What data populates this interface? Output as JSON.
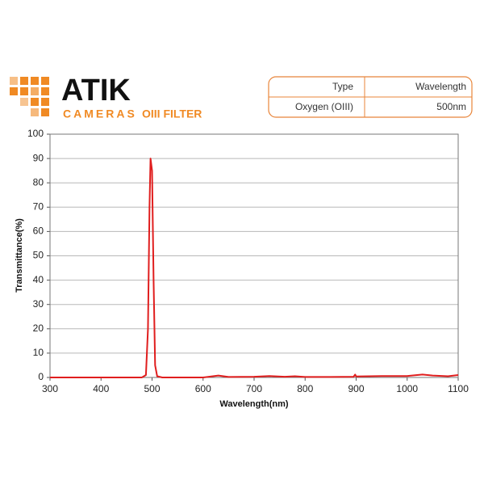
{
  "header": {
    "brand": "ATIK",
    "subbrand": "CAMERAS",
    "product": "OIII FILTER"
  },
  "table": {
    "rows": [
      [
        "Type",
        "Wavelength"
      ],
      [
        "Oxygen (OIII)",
        "500nm"
      ]
    ]
  },
  "chart_data": {
    "type": "line",
    "x_label": "Wavelength(nm)",
    "y_label": "Transmittance(%)",
    "xlim": [
      300,
      1100
    ],
    "xticks": [
      300,
      400,
      500,
      600,
      700,
      800,
      900,
      1000,
      1100
    ],
    "ylim": [
      0,
      100
    ],
    "yticks": [
      0,
      10,
      20,
      30,
      40,
      50,
      60,
      70,
      80,
      90,
      100
    ],
    "grid": true,
    "series": [
      {
        "color": "#e01e1e",
        "x": [
          300,
          400,
          480,
          488,
          492,
          495,
          497,
          500,
          503,
          506,
          510,
          520,
          600,
          630,
          650,
          700,
          730,
          760,
          780,
          800,
          850,
          895,
          898,
          900,
          950,
          1000,
          1030,
          1050,
          1080,
          1100
        ],
        "values": [
          0,
          0,
          0,
          1,
          20,
          70,
          90,
          85,
          40,
          5,
          0.5,
          0,
          0,
          0.8,
          0.2,
          0.3,
          0.6,
          0.3,
          0.5,
          0.2,
          0.2,
          0.3,
          1.2,
          0.4,
          0.6,
          0.6,
          1.2,
          0.8,
          0.5,
          1
        ]
      }
    ]
  }
}
